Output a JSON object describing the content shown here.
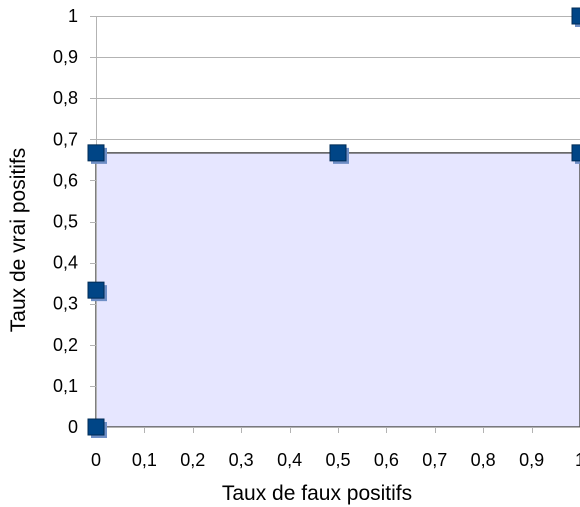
{
  "chart_data": {
    "type": "scatter",
    "xlabel": "Taux de faux positifs",
    "ylabel": "Taux de vrai positifs",
    "xlim": [
      0,
      1
    ],
    "ylim": [
      0,
      1
    ],
    "x_ticks": [
      "0",
      "0,1",
      "0,2",
      "0,3",
      "0,4",
      "0,5",
      "0,6",
      "0,7",
      "0,8",
      "0,9",
      "1"
    ],
    "y_ticks": [
      "0",
      "0,1",
      "0,2",
      "0,3",
      "0,4",
      "0,5",
      "0,6",
      "0,7",
      "0,8",
      "0,9",
      "1"
    ],
    "grid": true,
    "area": [
      {
        "x": 0,
        "y": 0
      },
      {
        "x": 0,
        "y": 0.667
      },
      {
        "x": 1,
        "y": 0.667
      },
      {
        "x": 1,
        "y": 0
      }
    ],
    "points": [
      {
        "x": 0,
        "y": 0
      },
      {
        "x": 0,
        "y": 0.333
      },
      {
        "x": 0,
        "y": 0.667
      },
      {
        "x": 0.5,
        "y": 0.667
      },
      {
        "x": 1,
        "y": 0.667
      },
      {
        "x": 1,
        "y": 1
      }
    ],
    "colors": {
      "marker": "#004586",
      "marker_shadow": "#6f8fc6",
      "area_fill": "#e6e6ff",
      "area_stroke": "#555555",
      "grid": "#b3b3b3",
      "axis": "#b3b3b3"
    }
  }
}
